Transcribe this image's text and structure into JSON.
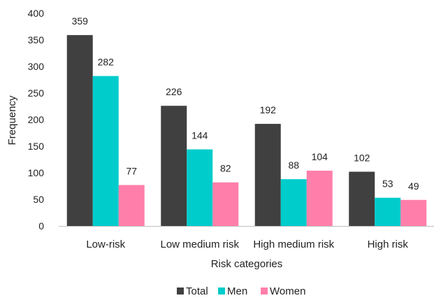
{
  "chart_data": {
    "type": "bar",
    "categories": [
      "Low-risk",
      "Low medium risk",
      "High medium risk",
      "High risk"
    ],
    "series": [
      {
        "name": "Total",
        "values": [
          359,
          226,
          192,
          102
        ],
        "color": "#404040"
      },
      {
        "name": "Men",
        "values": [
          282,
          144,
          88,
          53
        ],
        "color": "#00CCCC"
      },
      {
        "name": "Women",
        "values": [
          77,
          82,
          104,
          49
        ],
        "color": "#FF7FAA"
      }
    ],
    "title": "",
    "xlabel": "Risk categories",
    "ylabel": "Frequency",
    "ylim": [
      0,
      400
    ],
    "yticks": [
      0,
      50,
      100,
      150,
      200,
      250,
      300,
      350,
      400
    ],
    "grid": false,
    "legend_position": "bottom"
  }
}
